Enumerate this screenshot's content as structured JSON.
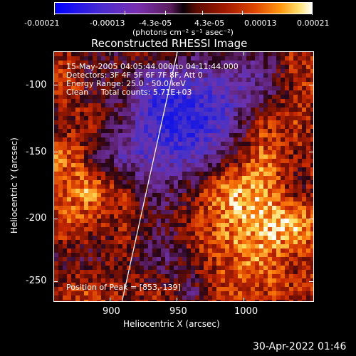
{
  "colorbar": {
    "tick_labels": [
      "-0.00021",
      "-0.00013",
      "-4.3e-05",
      "4.3e-05",
      "0.00013",
      "0.00021"
    ],
    "units_label": "(photons cm⁻² s⁻¹ asec⁻²)"
  },
  "plot": {
    "title": "Reconstructed RHESSI Image",
    "info_lines": [
      "15-May-2005 04:05:44.000 to 04:11:44.000",
      "Detectors: 3F 4F 5F 6F 7F 8F, Att 0",
      "Energy Range: 25.0 - 50.0 keV",
      "Clean     Total counts: 5.71E+03"
    ],
    "peak_label": "Position of Peak = [853,-139]",
    "xlabel": "Heliocentric X (arcsec)",
    "ylabel": "Heliocentric Y (arcsec)",
    "x_ticks": [
      "900",
      "950",
      "1000"
    ],
    "y_ticks": [
      "-100",
      "-150",
      "-200",
      "-250"
    ]
  },
  "footer": {
    "timestamp": "30-Apr-2022 01:46"
  }
}
